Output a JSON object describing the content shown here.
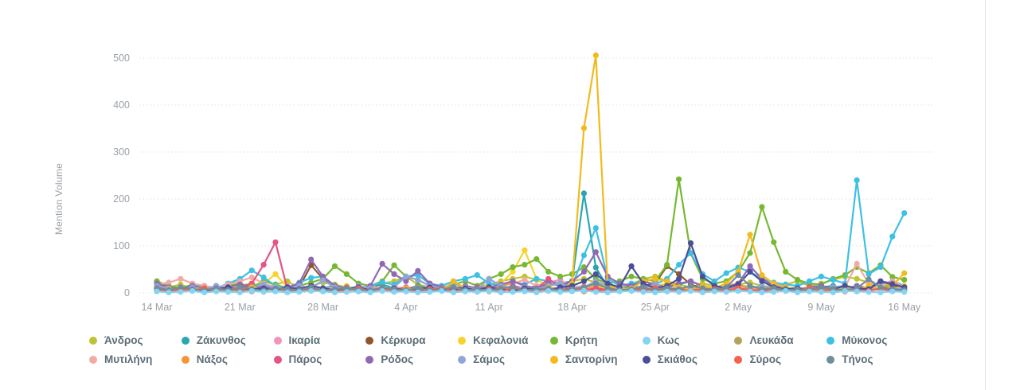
{
  "colors": {
    "background": "#ffffff",
    "axis_text": "#9aa0a6",
    "legend_text": "#5c6e77",
    "gridline": "#e0e0e0",
    "divider": "#e4e4e4"
  },
  "chart_data": {
    "type": "line",
    "title": "",
    "xlabel": "",
    "ylabel": "Mention Volume",
    "ylim": [
      0,
      520
    ],
    "y_ticks": [
      0,
      100,
      200,
      300,
      400,
      500
    ],
    "x_tick_labels": [
      "14 Mar",
      "21 Mar",
      "28 Mar",
      "4 Apr",
      "11 Apr",
      "18 Apr",
      "25 Apr",
      "2 May",
      "9 May",
      "16 May"
    ],
    "x_tick_indices": [
      0,
      7,
      14,
      21,
      28,
      35,
      42,
      49,
      56,
      63
    ],
    "x_start": "14 Mar",
    "x_end": "16 May",
    "frequency": "daily",
    "points_per_series": 64,
    "grid": "horizontal-dotted",
    "legend_position": "bottom",
    "markers": true,
    "series": [
      {
        "name": "Άνδρος",
        "color": "#bec432",
        "values": [
          25,
          12,
          18,
          8,
          14,
          10,
          6,
          15,
          20,
          12,
          18,
          25,
          10,
          15,
          22,
          18,
          12,
          8,
          15,
          20,
          25,
          35,
          18,
          12,
          10,
          15,
          8,
          12,
          18,
          25,
          30,
          35,
          28,
          15,
          20,
          25,
          30,
          22,
          15,
          10,
          18,
          30,
          35,
          25,
          18,
          12,
          20,
          15,
          10,
          18,
          22,
          15,
          12,
          18,
          25,
          15,
          20,
          28,
          35,
          30,
          22,
          15,
          18,
          12
        ]
      },
      {
        "name": "Ζάκυνθος",
        "color": "#2ba6b0",
        "values": [
          12,
          8,
          5,
          18,
          10,
          6,
          12,
          8,
          15,
          10,
          6,
          12,
          8,
          5,
          10,
          15,
          8,
          6,
          12,
          18,
          10,
          8,
          15,
          10,
          6,
          8,
          12,
          5,
          8,
          15,
          10,
          12,
          8,
          15,
          20,
          25,
          212,
          54,
          12,
          8,
          15,
          10,
          8,
          12,
          18,
          25,
          15,
          10,
          8,
          12,
          15,
          10,
          8,
          5,
          10,
          8,
          12,
          15,
          10,
          8,
          12,
          18,
          25,
          15
        ]
      },
      {
        "name": "Ικαρία",
        "color": "#f193bd",
        "values": [
          8,
          5,
          12,
          6,
          3,
          8,
          5,
          10,
          6,
          12,
          8,
          15,
          5,
          8,
          3,
          6,
          10,
          5,
          8,
          12,
          6,
          3,
          8,
          5,
          10,
          6,
          3,
          8,
          5,
          12,
          8,
          6,
          15,
          22,
          28,
          12,
          8,
          5,
          3,
          8,
          6,
          10,
          5,
          8,
          3,
          6,
          8,
          5,
          10,
          6,
          3,
          8,
          5,
          8,
          12,
          6,
          3,
          8,
          10,
          5,
          8,
          6,
          12,
          8
        ]
      },
      {
        "name": "Κέρκυρα",
        "color": "#90562b",
        "values": [
          10,
          6,
          3,
          8,
          12,
          5,
          8,
          6,
          10,
          15,
          8,
          5,
          12,
          59,
          30,
          10,
          6,
          8,
          12,
          5,
          8,
          10,
          6,
          15,
          8,
          5,
          10,
          6,
          8,
          12,
          5,
          8,
          15,
          10,
          6,
          8,
          12,
          18,
          10,
          6,
          8,
          15,
          20,
          57,
          40,
          18,
          10,
          6,
          8,
          12,
          5,
          8,
          10,
          6,
          8,
          5,
          10,
          8,
          12,
          6,
          8,
          10,
          15,
          8
        ]
      },
      {
        "name": "Κεφαλονιά",
        "color": "#f6d32e",
        "values": [
          8,
          5,
          10,
          6,
          12,
          8,
          5,
          15,
          10,
          20,
          40,
          12,
          6,
          8,
          5,
          10,
          15,
          6,
          8,
          12,
          5,
          8,
          10,
          6,
          15,
          8,
          5,
          12,
          8,
          20,
          45,
          91,
          30,
          12,
          8,
          6,
          10,
          15,
          8,
          5,
          12,
          8,
          15,
          20,
          10,
          6,
          8,
          12,
          5,
          8,
          15,
          10,
          6,
          8,
          5,
          10,
          8,
          6,
          12,
          8,
          5,
          10,
          8,
          15
        ]
      },
      {
        "name": "Κρήτη",
        "color": "#77b832",
        "values": [
          25,
          15,
          10,
          18,
          12,
          8,
          15,
          20,
          12,
          25,
          18,
          10,
          15,
          22,
          30,
          57,
          40,
          20,
          15,
          25,
          59,
          35,
          28,
          15,
          10,
          18,
          25,
          15,
          30,
          40,
          55,
          60,
          72,
          45,
          35,
          40,
          55,
          30,
          20,
          25,
          35,
          30,
          25,
          60,
          242,
          84,
          30,
          20,
          25,
          45,
          85,
          183,
          108,
          45,
          28,
          20,
          18,
          30,
          38,
          55,
          42,
          59,
          34,
          28
        ]
      },
      {
        "name": "Κως",
        "color": "#85d4f5",
        "values": [
          3,
          1,
          2,
          4,
          1,
          3,
          2,
          1,
          4,
          2,
          3,
          1,
          2,
          4,
          3,
          1,
          2,
          3,
          1,
          4,
          2,
          3,
          1,
          2,
          4,
          1,
          3,
          2,
          4,
          1,
          2,
          3,
          1,
          4,
          2,
          3,
          5,
          2,
          1,
          3,
          4,
          2,
          1,
          3,
          2,
          4,
          1,
          3,
          2,
          4,
          3,
          1,
          2,
          4,
          1,
          3,
          2,
          1,
          4,
          3,
          2,
          1,
          3,
          2
        ]
      },
      {
        "name": "Λευκάδα",
        "color": "#b5a355",
        "values": [
          5,
          8,
          3,
          6,
          10,
          4,
          7,
          3,
          8,
          5,
          12,
          6,
          3,
          8,
          4,
          6,
          10,
          3,
          5,
          8,
          4,
          6,
          3,
          10,
          5,
          8,
          4,
          6,
          3,
          8,
          12,
          5,
          8,
          4,
          6,
          10,
          3,
          5,
          8,
          4,
          6,
          12,
          8,
          3,
          5,
          10,
          4,
          6,
          3,
          8,
          5,
          4,
          10,
          6,
          3,
          8,
          4,
          6,
          10,
          3,
          5,
          8,
          4,
          6
        ]
      },
      {
        "name": "Μύκονος",
        "color": "#3ec0e5",
        "values": [
          10,
          6,
          12,
          8,
          15,
          10,
          20,
          30,
          48,
          33,
          15,
          10,
          22,
          32,
          35,
          15,
          10,
          8,
          15,
          22,
          18,
          35,
          38,
          20,
          15,
          25,
          30,
          38,
          20,
          15,
          25,
          18,
          30,
          25,
          20,
          15,
          80,
          138,
          30,
          15,
          20,
          25,
          18,
          30,
          60,
          85,
          40,
          25,
          42,
          54,
          45,
          30,
          22,
          18,
          15,
          25,
          35,
          28,
          20,
          240,
          40,
          55,
          120,
          170
        ]
      },
      {
        "name": "Μυτιλήνη",
        "color": "#f2aba3",
        "values": [
          18,
          22,
          30,
          20,
          15,
          10,
          18,
          25,
          33,
          20,
          12,
          8,
          15,
          10,
          8,
          12,
          6,
          10,
          15,
          8,
          12,
          10,
          6,
          15,
          8,
          10,
          12,
          6,
          8,
          15,
          20,
          28,
          15,
          10,
          8,
          12,
          15,
          10,
          6,
          12,
          8,
          10,
          15,
          8,
          12,
          6,
          10,
          8,
          12,
          15,
          10,
          8,
          6,
          12,
          8,
          10,
          15,
          8,
          12,
          62,
          20,
          15,
          25,
          12
        ]
      },
      {
        "name": "Νάξος",
        "color": "#f79437",
        "values": [
          8,
          4,
          6,
          10,
          5,
          8,
          12,
          6,
          4,
          8,
          10,
          5,
          6,
          12,
          4,
          8,
          6,
          10,
          5,
          8,
          4,
          6,
          12,
          8,
          5,
          10,
          6,
          4,
          8,
          12,
          25,
          15,
          8,
          6,
          10,
          4,
          8,
          12,
          6,
          5,
          10,
          8,
          4,
          12,
          6,
          8,
          10,
          5,
          15,
          20,
          8,
          6,
          12,
          5,
          8,
          10,
          4,
          6,
          8,
          12,
          5,
          8,
          10,
          6
        ]
      },
      {
        "name": "Πάρος",
        "color": "#e45581",
        "values": [
          12,
          8,
          5,
          10,
          6,
          15,
          8,
          12,
          20,
          60,
          108,
          8,
          5,
          10,
          6,
          8,
          12,
          5,
          8,
          10,
          6,
          12,
          8,
          5,
          10,
          6,
          8,
          12,
          5,
          8,
          15,
          10,
          8,
          30,
          12,
          8,
          5,
          10,
          6,
          8,
          12,
          5,
          8,
          10,
          6,
          8,
          5,
          12,
          8,
          10,
          6,
          5,
          8,
          12,
          6,
          8,
          10,
          5,
          8,
          6,
          12,
          8,
          5,
          10
        ]
      },
      {
        "name": "Ρόδος",
        "color": "#9069b4",
        "values": [
          20,
          12,
          8,
          15,
          10,
          6,
          12,
          18,
          10,
          15,
          8,
          12,
          20,
          71,
          35,
          15,
          10,
          8,
          15,
          62,
          40,
          25,
          47,
          20,
          12,
          8,
          15,
          10,
          12,
          18,
          25,
          15,
          10,
          20,
          15,
          25,
          45,
          87,
          35,
          20,
          15,
          25,
          18,
          12,
          20,
          25,
          15,
          10,
          12,
          20,
          57,
          30,
          15,
          10,
          8,
          12,
          15,
          10,
          8,
          15,
          10,
          25,
          20,
          12
        ]
      },
      {
        "name": "Σάμος",
        "color": "#92a5d9",
        "values": [
          15,
          10,
          6,
          12,
          8,
          15,
          10,
          6,
          12,
          18,
          10,
          8,
          15,
          10,
          27,
          12,
          8,
          15,
          10,
          6,
          12,
          35,
          28,
          15,
          10,
          20,
          12,
          8,
          30,
          15,
          10,
          12,
          8,
          15,
          20,
          10,
          12,
          25,
          15,
          8,
          10,
          12,
          18,
          10,
          8,
          15,
          10,
          6,
          12,
          8,
          10,
          15,
          8,
          12,
          6,
          10,
          8,
          12,
          15,
          10,
          6,
          12,
          8,
          10
        ]
      },
      {
        "name": "Σαντορίνη",
        "color": "#f2ba1f",
        "values": [
          5,
          8,
          3,
          6,
          10,
          4,
          8,
          5,
          12,
          6,
          8,
          10,
          4,
          6,
          8,
          5,
          10,
          6,
          4,
          8,
          5,
          10,
          6,
          8,
          4,
          25,
          10,
          6,
          8,
          5,
          10,
          8,
          6,
          12,
          8,
          20,
          351,
          506,
          15,
          8,
          10,
          25,
          30,
          25,
          12,
          8,
          15,
          10,
          20,
          45,
          124,
          38,
          20,
          12,
          8,
          10,
          6,
          8,
          12,
          6,
          15,
          8,
          15,
          42
        ]
      },
      {
        "name": "Σκιάθος",
        "color": "#4b4f98",
        "values": [
          8,
          5,
          10,
          6,
          3,
          8,
          12,
          5,
          8,
          10,
          6,
          12,
          8,
          15,
          10,
          6,
          8,
          12,
          5,
          8,
          10,
          6,
          8,
          12,
          5,
          8,
          10,
          6,
          12,
          8,
          5,
          10,
          8,
          6,
          12,
          15,
          25,
          40,
          20,
          12,
          57,
          20,
          10,
          15,
          30,
          106,
          35,
          15,
          10,
          18,
          45,
          25,
          12,
          8,
          10,
          6,
          12,
          8,
          15,
          10,
          8,
          25,
          18,
          12
        ]
      },
      {
        "name": "Σύρος",
        "color": "#f7604e",
        "values": [
          6,
          3,
          8,
          5,
          10,
          4,
          6,
          8,
          3,
          5,
          10,
          6,
          4,
          8,
          5,
          3,
          6,
          10,
          4,
          8,
          5,
          6,
          3,
          8,
          10,
          4,
          6,
          5,
          8,
          3,
          10,
          6,
          4,
          8,
          5,
          6,
          10,
          3,
          8,
          4,
          6,
          5,
          10,
          8,
          3,
          6,
          4,
          8,
          5,
          10,
          6,
          3,
          8,
          4,
          6,
          10,
          5,
          8,
          3,
          6,
          4,
          10,
          8,
          5
        ]
      },
      {
        "name": "Τήνος",
        "color": "#6f8d9b",
        "values": [
          10,
          6,
          12,
          8,
          5,
          10,
          6,
          12,
          8,
          5,
          10,
          8,
          6,
          12,
          5,
          8,
          10,
          6,
          5,
          12,
          8,
          6,
          10,
          5,
          8,
          12,
          6,
          8,
          5,
          10,
          12,
          6,
          8,
          10,
          5,
          8,
          12,
          20,
          10,
          6,
          8,
          12,
          5,
          10,
          8,
          15,
          10,
          6,
          12,
          38,
          15,
          8,
          10,
          6,
          8,
          5,
          12,
          8,
          6,
          10,
          29,
          12,
          8,
          6
        ]
      }
    ]
  }
}
